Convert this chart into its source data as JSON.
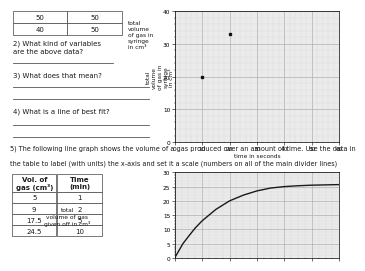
{
  "top_table_rows": [
    [
      "50",
      "50"
    ],
    [
      "40",
      "50"
    ]
  ],
  "q2_text": "2) What kind of variables\nare the above data?",
  "q3_text": "3) What does that mean?",
  "q4_text": "4) What is a line of best fit?",
  "top_graph": {
    "xlabel": "time in seconds",
    "ylabel": "total\nvolume\nof gas in\nsyringe\nin cm³",
    "xlim": [
      0,
      60
    ],
    "ylim": [
      0,
      40
    ],
    "xticks": [
      0,
      10,
      20,
      30,
      40,
      50,
      60
    ],
    "yticks": [
      0,
      10,
      20,
      30,
      40
    ],
    "points": [
      [
        10,
        20
      ],
      [
        20,
        33
      ]
    ]
  },
  "q5_line1": "5) The following line graph shows the volume of a gas produced over an amount of time. Use the data in",
  "q5_line2": "the table to label (with units) the x-axis and set it a scale (numbers on all of the main divider lines)",
  "bottom_table": {
    "headers": [
      "Vol. of\ngas (cm³)",
      "Time\n(min)"
    ],
    "rows": [
      [
        "5",
        "1"
      ],
      [
        "9",
        "2"
      ],
      [
        "17.5",
        "5"
      ],
      [
        "24.5",
        "10"
      ]
    ]
  },
  "bottom_ylabel": "total\nvolume of gas\ngiven off in cm³",
  "bottom_graph": {
    "xlim": [
      0,
      12
    ],
    "ylim": [
      0,
      30
    ],
    "yticks": [
      0,
      5,
      10,
      15,
      20,
      25,
      30
    ],
    "curve_x": [
      0,
      0.3,
      0.6,
      1,
      1.5,
      2,
      3,
      4,
      5,
      6,
      7,
      8,
      9,
      10,
      11,
      12
    ],
    "curve_y": [
      0,
      2.5,
      5,
      7.5,
      10.5,
      13,
      17,
      20,
      22,
      23.5,
      24.5,
      25,
      25.3,
      25.5,
      25.6,
      25.7
    ]
  },
  "line_color": "#1a1a1a",
  "grid_major_color": "#b0b0b0",
  "grid_minor_color": "#d8d8d8",
  "text_color": "#1a1a1a",
  "font_size": 5.0,
  "small_font": 4.2,
  "table_border_color": "#444444",
  "bg_graph": "#ebebeb"
}
